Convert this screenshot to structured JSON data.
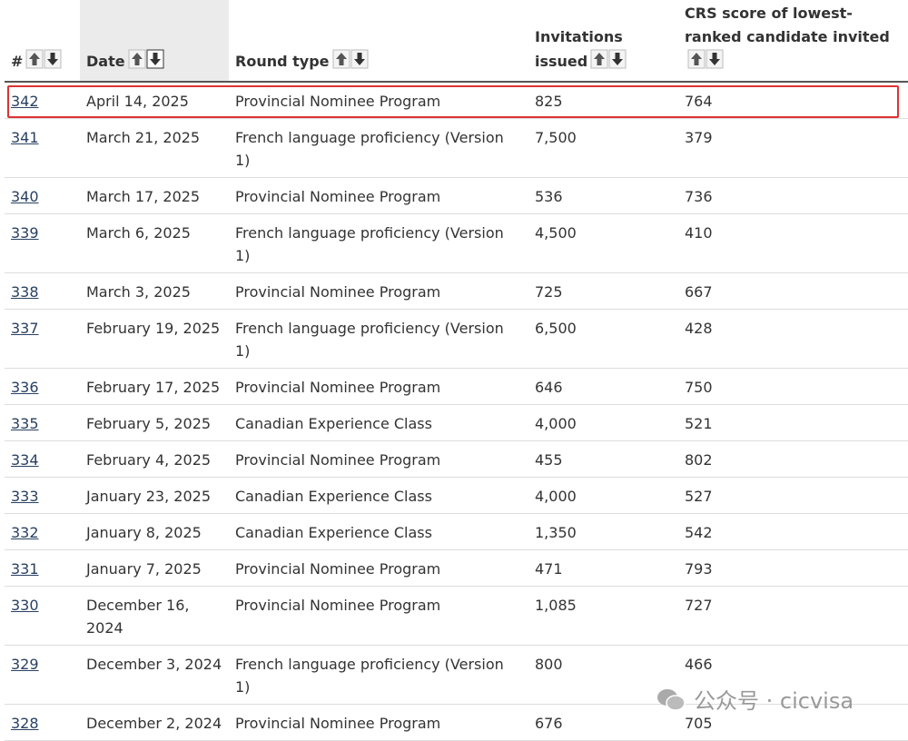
{
  "table": {
    "headers": [
      "#",
      "Date",
      "Round type",
      "Invitations issued",
      "CRS score of lowest-ranked candidate invited"
    ],
    "rows": [
      [
        "342",
        "April 14, 2025",
        "Provincial Nominee Program",
        "825",
        "764"
      ],
      [
        "341",
        "March 21, 2025",
        "French language proficiency (Version 1)",
        "7,500",
        "379"
      ],
      [
        "340",
        "March 17, 2025",
        "Provincial Nominee Program",
        "536",
        "736"
      ],
      [
        "339",
        "March 6, 2025",
        "French language proficiency (Version 1)",
        "4,500",
        "410"
      ],
      [
        "338",
        "March 3, 2025",
        "Provincial Nominee Program",
        "725",
        "667"
      ],
      [
        "337",
        "February 19, 2025",
        "French language proficiency (Version 1)",
        "6,500",
        "428"
      ],
      [
        "336",
        "February 17, 2025",
        "Provincial Nominee Program",
        "646",
        "750"
      ],
      [
        "335",
        "February 5, 2025",
        "Canadian Experience Class",
        "4,000",
        "521"
      ],
      [
        "334",
        "February 4, 2025",
        "Provincial Nominee Program",
        "455",
        "802"
      ],
      [
        "333",
        "January 23, 2025",
        "Canadian Experience Class",
        "4,000",
        "527"
      ],
      [
        "332",
        "January 8, 2025",
        "Canadian Experience Class",
        "1,350",
        "542"
      ],
      [
        "331",
        "January 7, 2025",
        "Provincial Nominee Program",
        "471",
        "793"
      ],
      [
        "330",
        "December 16, 2024",
        "Provincial Nominee Program",
        "1,085",
        "727"
      ],
      [
        "329",
        "December 3, 2024",
        "French language proficiency (Version 1)",
        "800",
        "466"
      ],
      [
        "328",
        "December 2, 2024",
        "Provincial Nominee Program",
        "676",
        "705"
      ]
    ]
  },
  "watermark": "公众号 · cicvisa"
}
